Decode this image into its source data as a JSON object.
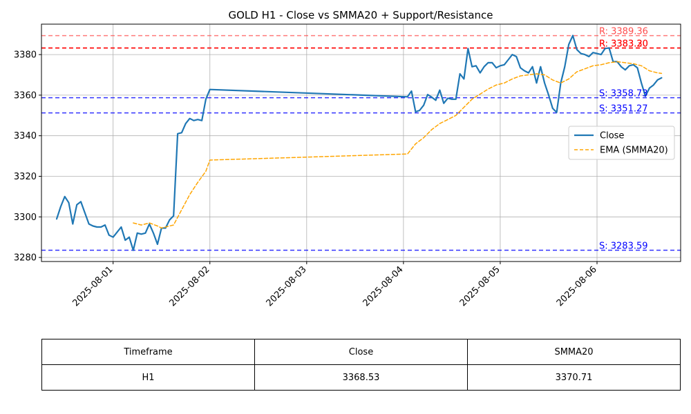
{
  "chart_data": {
    "type": "line",
    "title": "GOLD H1 - Close vs SMMA20 + Support/Resistance",
    "xlabel": "",
    "ylabel": "",
    "x_ticks": [
      "2025-08-01",
      "2025-08-02",
      "2025-08-03",
      "2025-08-04",
      "2025-08-05",
      "2025-08-06"
    ],
    "y_ticks": [
      3280,
      3300,
      3320,
      3340,
      3360,
      3380
    ],
    "ylim": [
      3278,
      3395
    ],
    "grid": true,
    "legend_position": "center-right",
    "series": [
      {
        "name": "Close",
        "color": "#1f77b4",
        "style": "solid",
        "points": [
          [
            "2025-07-31T10:00",
            3299.0
          ],
          [
            "2025-07-31T11:00",
            3305.0
          ],
          [
            "2025-07-31T12:00",
            3310.0
          ],
          [
            "2025-07-31T13:00",
            3307.0
          ],
          [
            "2025-07-31T14:00",
            3296.5
          ],
          [
            "2025-07-31T15:00",
            3306.0
          ],
          [
            "2025-07-31T16:00",
            3307.5
          ],
          [
            "2025-07-31T17:00",
            3302.0
          ],
          [
            "2025-07-31T18:00",
            3296.5
          ],
          [
            "2025-07-31T19:00",
            3295.5
          ],
          [
            "2025-07-31T20:00",
            3295.0
          ],
          [
            "2025-07-31T21:00",
            3295.0
          ],
          [
            "2025-07-31T22:00",
            3296.0
          ],
          [
            "2025-07-31T23:00",
            3291.0
          ],
          [
            "2025-08-01T00:00",
            3290.0
          ],
          [
            "2025-08-01T01:00",
            3292.5
          ],
          [
            "2025-08-01T02:00",
            3295.0
          ],
          [
            "2025-08-01T03:00",
            3288.5
          ],
          [
            "2025-08-01T04:00",
            3290.0
          ],
          [
            "2025-08-01T05:00",
            3283.5
          ],
          [
            "2025-08-01T06:00",
            3292.0
          ],
          [
            "2025-08-01T07:00",
            3291.5
          ],
          [
            "2025-08-01T08:00",
            3292.0
          ],
          [
            "2025-08-01T09:00",
            3296.5
          ],
          [
            "2025-08-01T10:00",
            3292.0
          ],
          [
            "2025-08-01T11:00",
            3286.5
          ],
          [
            "2025-08-01T12:00",
            3294.5
          ],
          [
            "2025-08-01T13:00",
            3294.5
          ],
          [
            "2025-08-01T14:00",
            3298.5
          ],
          [
            "2025-08-01T15:00",
            3300.5
          ],
          [
            "2025-08-01T16:00",
            3341.0
          ],
          [
            "2025-08-01T17:00",
            3341.5
          ],
          [
            "2025-08-01T18:00",
            3346.0
          ],
          [
            "2025-08-01T19:00",
            3348.5
          ],
          [
            "2025-08-01T20:00",
            3347.5
          ],
          [
            "2025-08-01T21:00",
            3348.0
          ],
          [
            "2025-08-01T22:00",
            3347.5
          ],
          [
            "2025-08-01T23:00",
            3358.0
          ],
          [
            "2025-08-02T00:00",
            3362.8
          ],
          [
            "2025-08-04T01:00",
            3359.2
          ],
          [
            "2025-08-04T02:00",
            3362.0
          ],
          [
            "2025-08-04T03:00",
            3351.8
          ],
          [
            "2025-08-04T04:00",
            3352.5
          ],
          [
            "2025-08-04T05:00",
            3355.0
          ],
          [
            "2025-08-04T06:00",
            3360.3
          ],
          [
            "2025-08-04T07:00",
            3359.0
          ],
          [
            "2025-08-04T08:00",
            3357.5
          ],
          [
            "2025-08-04T09:00",
            3362.5
          ],
          [
            "2025-08-04T10:00",
            3356.0
          ],
          [
            "2025-08-04T11:00",
            3358.5
          ],
          [
            "2025-08-04T12:00",
            3358.0
          ],
          [
            "2025-08-04T13:00",
            3358.0
          ],
          [
            "2025-08-04T14:00",
            3370.5
          ],
          [
            "2025-08-04T15:00",
            3368.0
          ],
          [
            "2025-08-04T16:00",
            3383.0
          ],
          [
            "2025-08-04T17:00",
            3374.0
          ],
          [
            "2025-08-04T18:00",
            3374.5
          ],
          [
            "2025-08-04T19:00",
            3371.0
          ],
          [
            "2025-08-04T20:00",
            3374.0
          ],
          [
            "2025-08-04T21:00",
            3376.0
          ],
          [
            "2025-08-04T22:00",
            3376.0
          ],
          [
            "2025-08-04T23:00",
            3373.5
          ],
          [
            "2025-08-05T00:00",
            3374.5
          ],
          [
            "2025-08-05T01:00",
            3375.0
          ],
          [
            "2025-08-05T02:00",
            3377.5
          ],
          [
            "2025-08-05T03:00",
            3380.0
          ],
          [
            "2025-08-05T04:00",
            3379.0
          ],
          [
            "2025-08-05T05:00",
            3373.5
          ],
          [
            "2025-08-05T06:00",
            3372.0
          ],
          [
            "2025-08-05T07:00",
            3371.0
          ],
          [
            "2025-08-05T08:00",
            3374.0
          ],
          [
            "2025-08-05T09:00",
            3366.0
          ],
          [
            "2025-08-05T10:00",
            3374.0
          ],
          [
            "2025-08-05T11:00",
            3366.0
          ],
          [
            "2025-08-05T12:00",
            3360.0
          ],
          [
            "2025-08-05T13:00",
            3353.5
          ],
          [
            "2025-08-05T14:00",
            3351.5
          ],
          [
            "2025-08-05T15:00",
            3366.0
          ],
          [
            "2025-08-05T16:00",
            3374.0
          ],
          [
            "2025-08-05T17:00",
            3385.0
          ],
          [
            "2025-08-05T18:00",
            3389.4
          ],
          [
            "2025-08-05T19:00",
            3382.5
          ],
          [
            "2025-08-05T20:00",
            3380.5
          ],
          [
            "2025-08-05T21:00",
            3380.0
          ],
          [
            "2025-08-05T22:00",
            3379.0
          ],
          [
            "2025-08-05T23:00",
            3381.0
          ],
          [
            "2025-08-06T00:00",
            3380.5
          ],
          [
            "2025-08-06T01:00",
            3380.0
          ],
          [
            "2025-08-06T02:00",
            3383.0
          ],
          [
            "2025-08-06T03:00",
            3383.3
          ],
          [
            "2025-08-06T04:00",
            3376.5
          ],
          [
            "2025-08-06T05:00",
            3376.5
          ],
          [
            "2025-08-06T06:00",
            3374.0
          ],
          [
            "2025-08-06T07:00",
            3372.5
          ],
          [
            "2025-08-06T08:00",
            3374.5
          ],
          [
            "2025-08-06T09:00",
            3375.0
          ],
          [
            "2025-08-06T10:00",
            3373.5
          ],
          [
            "2025-08-06T11:00",
            3366.0
          ],
          [
            "2025-08-06T12:00",
            3359.5
          ],
          [
            "2025-08-06T13:00",
            3363.5
          ],
          [
            "2025-08-06T14:00",
            3365.0
          ],
          [
            "2025-08-06T15:00",
            3367.5
          ],
          [
            "2025-08-06T16:00",
            3368.53
          ]
        ]
      },
      {
        "name": "EMA (SMMA20)",
        "color": "#ffa500",
        "style": "dashed",
        "points": [
          [
            "2025-08-01T05:00",
            3297.0
          ],
          [
            "2025-08-01T07:00",
            3296.0
          ],
          [
            "2025-08-01T09:00",
            3297.0
          ],
          [
            "2025-08-01T11:00",
            3295.5
          ],
          [
            "2025-08-01T12:00",
            3294.5
          ],
          [
            "2025-08-01T13:00",
            3295.0
          ],
          [
            "2025-08-01T14:00",
            3295.5
          ],
          [
            "2025-08-01T15:00",
            3296.0
          ],
          [
            "2025-08-01T17:00",
            3303.5
          ],
          [
            "2025-08-01T19:00",
            3311.0
          ],
          [
            "2025-08-01T21:00",
            3317.0
          ],
          [
            "2025-08-01T23:00",
            3322.5
          ],
          [
            "2025-08-02T00:00",
            3328.0
          ],
          [
            "2025-08-04T01:00",
            3331.0
          ],
          [
            "2025-08-04T03:00",
            3336.0
          ],
          [
            "2025-08-04T05:00",
            3339.0
          ],
          [
            "2025-08-04T07:00",
            3343.0
          ],
          [
            "2025-08-04T09:00",
            3346.0
          ],
          [
            "2025-08-04T11:00",
            3348.0
          ],
          [
            "2025-08-04T13:00",
            3350.0
          ],
          [
            "2025-08-04T15:00",
            3354.0
          ],
          [
            "2025-08-04T17:00",
            3358.0
          ],
          [
            "2025-08-04T19:00",
            3360.5
          ],
          [
            "2025-08-04T21:00",
            3363.0
          ],
          [
            "2025-08-04T23:00",
            3365.0
          ],
          [
            "2025-08-05T01:00",
            3366.0
          ],
          [
            "2025-08-05T03:00",
            3368.0
          ],
          [
            "2025-08-05T05:00",
            3369.5
          ],
          [
            "2025-08-05T07:00",
            3370.0
          ],
          [
            "2025-08-05T09:00",
            3370.5
          ],
          [
            "2025-08-05T11:00",
            3370.0
          ],
          [
            "2025-08-05T13:00",
            3367.5
          ],
          [
            "2025-08-05T15:00",
            3366.0
          ],
          [
            "2025-08-05T17:00",
            3368.0
          ],
          [
            "2025-08-05T19:00",
            3371.5
          ],
          [
            "2025-08-05T21:00",
            3373.0
          ],
          [
            "2025-08-05T23:00",
            3374.5
          ],
          [
            "2025-08-06T01:00",
            3375.0
          ],
          [
            "2025-08-06T03:00",
            3376.0
          ],
          [
            "2025-08-06T05:00",
            3376.5
          ],
          [
            "2025-08-06T07:00",
            3376.0
          ],
          [
            "2025-08-06T09:00",
            3375.5
          ],
          [
            "2025-08-06T11:00",
            3374.5
          ],
          [
            "2025-08-06T13:00",
            3372.0
          ],
          [
            "2025-08-06T15:00",
            3371.0
          ],
          [
            "2025-08-06T16:00",
            3370.71
          ]
        ]
      }
    ],
    "levels": [
      {
        "kind": "resistance",
        "value": 3389.36,
        "label": "R: 3389.36",
        "color": "#ff4d4d"
      },
      {
        "kind": "resistance",
        "value": 3383.3,
        "label": "R: 3383.30",
        "color": "#ff0000"
      },
      {
        "kind": "resistance",
        "value": 3383.2,
        "label": "R: 3383.20",
        "color": "#ff0000"
      },
      {
        "kind": "support",
        "value": 3358.73,
        "label": "S: 3358.73",
        "color": "#0000ff"
      },
      {
        "kind": "support",
        "value": 3351.27,
        "label": "S: 3351.27",
        "color": "#0000ff"
      },
      {
        "kind": "support",
        "value": 3283.59,
        "label": "S: 3283.59",
        "color": "#0000ff"
      }
    ]
  },
  "table": {
    "headers": [
      "Timeframe",
      "Close",
      "SMMA20"
    ],
    "row": [
      "H1",
      "3368.53",
      "3370.71"
    ]
  }
}
